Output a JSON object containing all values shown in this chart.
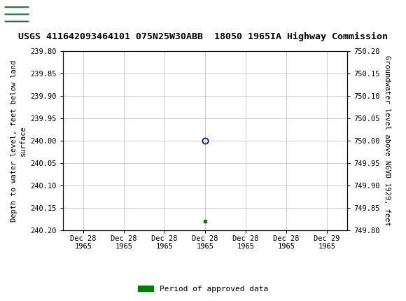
{
  "title": "USGS 411642093464101 075N25W30ABB  18050 1965IA Highway Commission",
  "left_ylabel": "Depth to water level, feet below land\nsurface",
  "right_ylabel": "Groundwater level above NGVD 1929, feet",
  "ylim_left": [
    239.8,
    240.2
  ],
  "ylim_right": [
    749.8,
    750.2
  ],
  "left_yticks": [
    239.8,
    239.85,
    239.9,
    239.95,
    240.0,
    240.05,
    240.1,
    240.15,
    240.2
  ],
  "right_yticks": [
    749.8,
    749.85,
    749.9,
    749.95,
    750.0,
    750.05,
    750.1,
    750.15,
    750.2
  ],
  "open_circle_value": 240.0,
  "green_square_value": 240.18,
  "x_tick_labels": [
    "Dec 28\n1965",
    "Dec 28\n1965",
    "Dec 28\n1965",
    "Dec 28\n1965",
    "Dec 28\n1965",
    "Dec 28\n1965",
    "Dec 29\n1965"
  ],
  "background_color": "#ffffff",
  "plot_bg_color": "#ffffff",
  "grid_color": "#c8c8c8",
  "header_bg_color": "#1f6b3a",
  "title_color": "#000000",
  "open_circle_color": "#0000cc",
  "green_square_color": "#008000",
  "legend_label": "Period of approved data",
  "font_family": "DejaVu Sans Mono",
  "title_fontsize": 9.5,
  "tick_fontsize": 7.5,
  "ylabel_fontsize": 7.5,
  "legend_fontsize": 8
}
